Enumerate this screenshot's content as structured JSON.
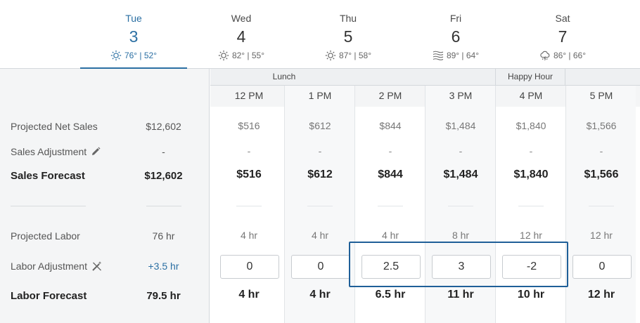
{
  "days": [
    {
      "name": "Tue",
      "num": "3",
      "weather": "76° | 52°",
      "icon": "sun-icon",
      "active": true
    },
    {
      "name": "Wed",
      "num": "4",
      "weather": "82° | 55°",
      "icon": "sun-icon"
    },
    {
      "name": "Thu",
      "num": "5",
      "weather": "87° | 58°",
      "icon": "sun-icon"
    },
    {
      "name": "Fri",
      "num": "6",
      "weather": "89° | 64°",
      "icon": "haze-icon"
    },
    {
      "name": "Sat",
      "num": "7",
      "weather": "86° | 66°",
      "icon": "storm-cloud-icon"
    }
  ],
  "groups": {
    "lunch": "Lunch",
    "happy_hour": "Happy Hour"
  },
  "rows": {
    "projected_net_sales": {
      "label": "Projected Net Sales",
      "total": "$12,602"
    },
    "sales_adjustment": {
      "label": "Sales Adjustment",
      "total": "-",
      "icon": "pencil-icon"
    },
    "sales_forecast": {
      "label": "Sales Forecast",
      "total": "$12,602"
    },
    "projected_labor": {
      "label": "Projected Labor",
      "total": "76 hr"
    },
    "labor_adjustment": {
      "label": "Labor Adjustment",
      "total": "+3.5 hr",
      "icon": "magic-wand-icon"
    },
    "labor_forecast": {
      "label": "Labor Forecast",
      "total": "79.5 hr"
    }
  },
  "hours": [
    {
      "label": "12 PM",
      "net_sales": "$516",
      "sales_adj": "-",
      "sales_forecast": "$516",
      "proj_labor": "4 hr",
      "labor_adj": "0",
      "labor_forecast": "4 hr"
    },
    {
      "label": "1 PM",
      "net_sales": "$612",
      "sales_adj": "-",
      "sales_forecast": "$612",
      "proj_labor": "4 hr",
      "labor_adj": "0",
      "labor_forecast": "4 hr"
    },
    {
      "label": "2 PM",
      "net_sales": "$844",
      "sales_adj": "-",
      "sales_forecast": "$844",
      "proj_labor": "4 hr",
      "labor_adj": "2.5",
      "labor_forecast": "6.5 hr"
    },
    {
      "label": "3 PM",
      "net_sales": "$1,484",
      "sales_adj": "-",
      "sales_forecast": "$1,484",
      "proj_labor": "8 hr",
      "labor_adj": "3",
      "labor_forecast": "11 hr"
    },
    {
      "label": "4 PM",
      "net_sales": "$1,840",
      "sales_adj": "-",
      "sales_forecast": "$1,840",
      "proj_labor": "12 hr",
      "labor_adj": "-2",
      "labor_forecast": "10 hr"
    },
    {
      "label": "5 PM",
      "net_sales": "$1,566",
      "sales_adj": "-",
      "sales_forecast": "$1,566",
      "proj_labor": "12 hr",
      "labor_adj": "0",
      "labor_forecast": "12 hr"
    }
  ],
  "colors": {
    "accent": "#2b6fa3",
    "highlight_border": "#1f5f98"
  }
}
